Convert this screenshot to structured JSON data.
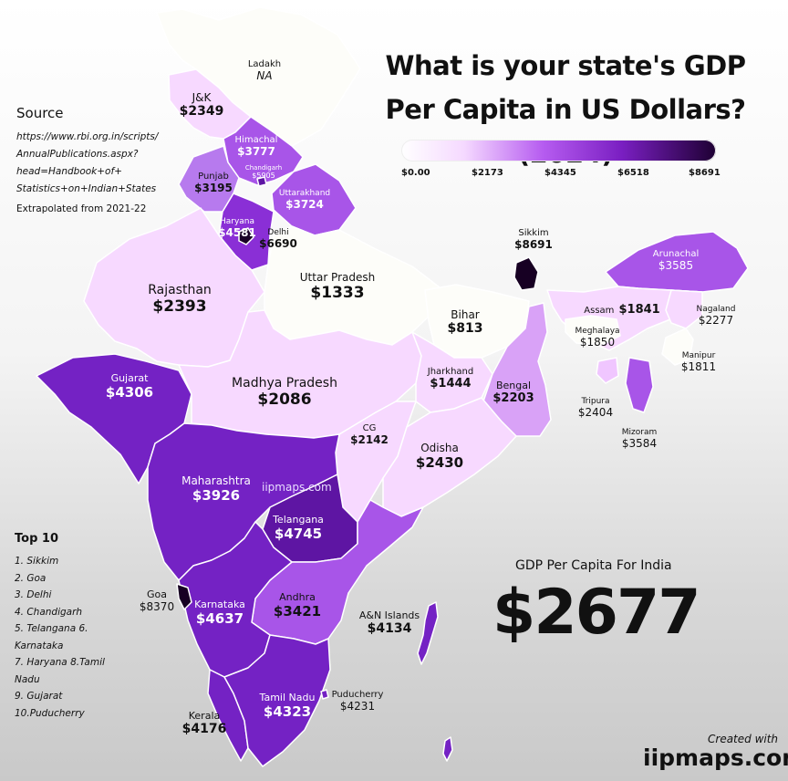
{
  "title": "What is your state's GDP Per Capita in US Dollars? (2024)",
  "legend": {
    "ticks": [
      "$0.00",
      "$2173",
      "$4345",
      "$6518",
      "$8691"
    ]
  },
  "source": {
    "heading": "Source",
    "url_lines": [
      "https://www.rbi.org.in/scripts/",
      "AnnualPublications.aspx?",
      "head=Handbook+of+",
      "Statistics+on+Indian+States"
    ],
    "note": "Extrapolated from 2021-22"
  },
  "top10": {
    "heading": "Top 10",
    "items": [
      "1. Sikkim",
      "2. Goa",
      "3. Delhi",
      "4. Chandigarh",
      "5. Telangana 6. Karnataka",
      "7. Haryana 8.Tamil Nadu",
      "9. Gujarat",
      "10.Puducherry"
    ]
  },
  "india": {
    "label": "GDP Per Capita For India",
    "value": "$2677"
  },
  "credit": {
    "small": "Created with",
    "big": "iipmaps.com"
  },
  "watermark": "iipmaps.com",
  "colors": {
    "c0": "#fdfdf9",
    "c1": "#f7d9ff",
    "c2": "#f0c6ff",
    "c3": "#d9a2f7",
    "c4": "#a855e8",
    "c5": "#8a2fd6",
    "c6": "#7422c4",
    "c7": "#170023"
  },
  "states": [
    {
      "name": "Ladakh",
      "value": "NA"
    },
    {
      "name": "J&K",
      "value": "$2349"
    },
    {
      "name": "Himachal",
      "value": "$3777"
    },
    {
      "name": "Chandigarh",
      "value": "$5905"
    },
    {
      "name": "Punjab",
      "value": "$3195"
    },
    {
      "name": "Uttarakhand",
      "value": "$3724"
    },
    {
      "name": "Haryana",
      "value": "$4581"
    },
    {
      "name": "Delhi",
      "value": "$6690"
    },
    {
      "name": "Rajasthan",
      "value": "$2393"
    },
    {
      "name": "Uttar Pradesh",
      "value": "$1333"
    },
    {
      "name": "Bihar",
      "value": "$813"
    },
    {
      "name": "Sikkim",
      "value": "$8691"
    },
    {
      "name": "Arunachal",
      "value": "$3585"
    },
    {
      "name": "Assam",
      "value": "$1841"
    },
    {
      "name": "Nagaland",
      "value": "$2277"
    },
    {
      "name": "Meghalaya",
      "value": "$1850"
    },
    {
      "name": "Manipur",
      "value": "$1811"
    },
    {
      "name": "Tripura",
      "value": "$2404"
    },
    {
      "name": "Mizoram",
      "value": "$3584"
    },
    {
      "name": "Gujarat",
      "value": "$4306"
    },
    {
      "name": "Madhya Pradesh",
      "value": "$2086"
    },
    {
      "name": "Jharkhand",
      "value": "$1444"
    },
    {
      "name": "Bengal",
      "value": "$2203"
    },
    {
      "name": "CG",
      "value": "$2142"
    },
    {
      "name": "Odisha",
      "value": "$2430"
    },
    {
      "name": "Maharashtra",
      "value": "$3926"
    },
    {
      "name": "Telangana",
      "value": "$4745"
    },
    {
      "name": "Goa",
      "value": "$8370"
    },
    {
      "name": "Karnataka",
      "value": "$4637"
    },
    {
      "name": "Andhra",
      "value": "$3421"
    },
    {
      "name": "A&N Islands",
      "value": "$4134"
    },
    {
      "name": "Tamil Nadu",
      "value": "$4323"
    },
    {
      "name": "Puducherry",
      "value": "$4231"
    },
    {
      "name": "Kerala",
      "value": "$4176"
    }
  ]
}
